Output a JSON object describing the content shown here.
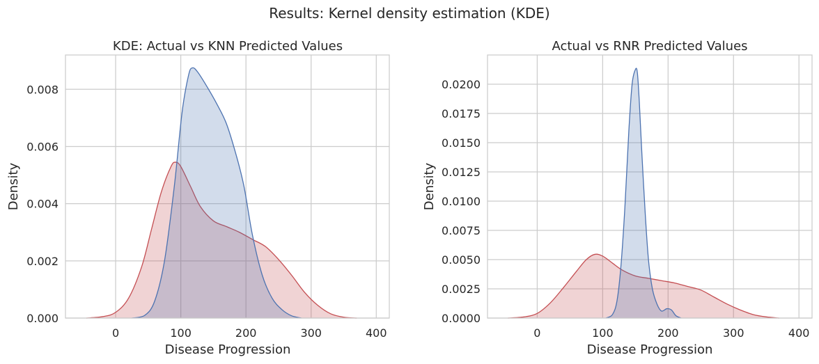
{
  "figure": {
    "suptitle": "Results: Kernel density estimation (KDE)"
  },
  "chart_data": [
    {
      "type": "area",
      "title": "KDE: Actual vs KNN Predicted Values",
      "xlabel": "Disease Progression",
      "ylabel": "Density",
      "xlim": [
        -77,
        420
      ],
      "ylim": [
        0,
        0.0092
      ],
      "xticks": [
        0,
        100,
        200,
        300,
        400
      ],
      "xtick_labels": [
        "0",
        "100",
        "200",
        "300",
        "400"
      ],
      "yticks": [
        0,
        0.002,
        0.004,
        0.006,
        0.008
      ],
      "ytick_labels": [
        "0.000",
        "0.002",
        "0.004",
        "0.006",
        "0.008"
      ],
      "grid": true,
      "series": [
        {
          "color": "#c44e52",
          "points": [
            [
              -45,
              0
            ],
            [
              -20,
              5e-05
            ],
            [
              0,
              0.0002
            ],
            [
              20,
              0.0007
            ],
            [
              40,
              0.0018
            ],
            [
              55,
              0.0031
            ],
            [
              70,
              0.0044
            ],
            [
              85,
              0.0053
            ],
            [
              92,
              0.00545
            ],
            [
              100,
              0.0053
            ],
            [
              115,
              0.0046
            ],
            [
              130,
              0.0039
            ],
            [
              150,
              0.0034
            ],
            [
              170,
              0.0032
            ],
            [
              190,
              0.003
            ],
            [
              210,
              0.00275
            ],
            [
              230,
              0.0025
            ],
            [
              250,
              0.00205
            ],
            [
              270,
              0.0015
            ],
            [
              290,
              0.0009
            ],
            [
              310,
              0.00045
            ],
            [
              330,
              0.00015
            ],
            [
              350,
              3e-05
            ],
            [
              370,
              0
            ]
          ]
        },
        {
          "color": "#4c72b0",
          "points": [
            [
              25,
              0
            ],
            [
              45,
              0.0001
            ],
            [
              60,
              0.0006
            ],
            [
              75,
              0.002
            ],
            [
              90,
              0.0046
            ],
            [
              102,
              0.0072
            ],
            [
              112,
              0.0085
            ],
            [
              118,
              0.00875
            ],
            [
              126,
              0.0086
            ],
            [
              140,
              0.0081
            ],
            [
              155,
              0.0075
            ],
            [
              170,
              0.0068
            ],
            [
              185,
              0.0057
            ],
            [
              197,
              0.0046
            ],
            [
              210,
              0.0029
            ],
            [
              225,
              0.0015
            ],
            [
              240,
              0.0007
            ],
            [
              255,
              0.0003
            ],
            [
              270,
              8e-05
            ],
            [
              285,
              0
            ]
          ]
        }
      ]
    },
    {
      "type": "area",
      "title": "Actual vs RNR Predicted Values",
      "xlabel": "Disease Progression",
      "ylabel": "Density",
      "xlim": [
        -76,
        420
      ],
      "ylim": [
        0,
        0.0225
      ],
      "xticks": [
        0,
        100,
        200,
        300,
        400
      ],
      "xtick_labels": [
        "0",
        "100",
        "200",
        "300",
        "400"
      ],
      "yticks": [
        0,
        0.0025,
        0.005,
        0.0075,
        0.01,
        0.0125,
        0.015,
        0.0175,
        0.02
      ],
      "ytick_labels": [
        "0.0000",
        "0.0025",
        "0.0050",
        "0.0075",
        "0.0100",
        "0.0125",
        "0.0150",
        "0.0175",
        "0.0200"
      ],
      "grid": true,
      "series": [
        {
          "color": "#c44e52",
          "points": [
            [
              -45,
              0
            ],
            [
              -20,
              0.0001
            ],
            [
              0,
              0.0004
            ],
            [
              20,
              0.0013
            ],
            [
              40,
              0.0026
            ],
            [
              60,
              0.004
            ],
            [
              75,
              0.005
            ],
            [
              88,
              0.00545
            ],
            [
              100,
              0.0053
            ],
            [
              115,
              0.0047
            ],
            [
              130,
              0.0041
            ],
            [
              150,
              0.0036
            ],
            [
              170,
              0.0034
            ],
            [
              190,
              0.0032
            ],
            [
              210,
              0.003
            ],
            [
              230,
              0.0027
            ],
            [
              250,
              0.0024
            ],
            [
              270,
              0.0018
            ],
            [
              290,
              0.0012
            ],
            [
              310,
              0.0007
            ],
            [
              330,
              0.0003
            ],
            [
              350,
              0.0001
            ],
            [
              370,
              0
            ]
          ]
        },
        {
          "color": "#4c72b0",
          "points": [
            [
              105,
              0
            ],
            [
              115,
              0.0003
            ],
            [
              122,
              0.0015
            ],
            [
              128,
              0.0045
            ],
            [
              134,
              0.0095
            ],
            [
              140,
              0.016
            ],
            [
              145,
              0.02
            ],
            [
              150,
              0.02125
            ],
            [
              153,
              0.021
            ],
            [
              156,
              0.0185
            ],
            [
              160,
              0.014
            ],
            [
              165,
              0.009
            ],
            [
              170,
              0.005
            ],
            [
              176,
              0.0025
            ],
            [
              183,
              0.0012
            ],
            [
              190,
              0.0006
            ],
            [
              198,
              0.0008
            ],
            [
              205,
              0.0007
            ],
            [
              212,
              0.0002
            ],
            [
              220,
              0
            ]
          ]
        }
      ]
    }
  ]
}
